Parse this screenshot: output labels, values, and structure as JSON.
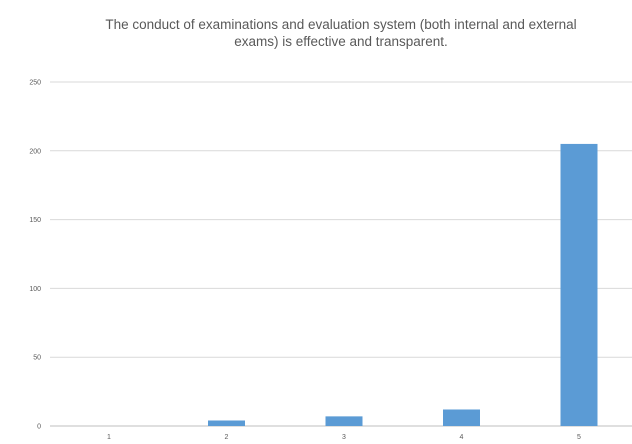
{
  "chart_data": {
    "type": "bar",
    "title_lines": [
      "The conduct of examinations and evaluation system (both internal and external",
      "exams) is effective and transparent."
    ],
    "categories": [
      "1",
      "2",
      "3",
      "4",
      "5"
    ],
    "values": [
      0,
      4,
      7,
      12,
      205
    ],
    "ylim": [
      0,
      250
    ],
    "yticks": [
      0,
      50,
      100,
      150,
      200,
      250
    ],
    "grid": true,
    "legend": "none",
    "bar_color": "#5b9bd5"
  }
}
